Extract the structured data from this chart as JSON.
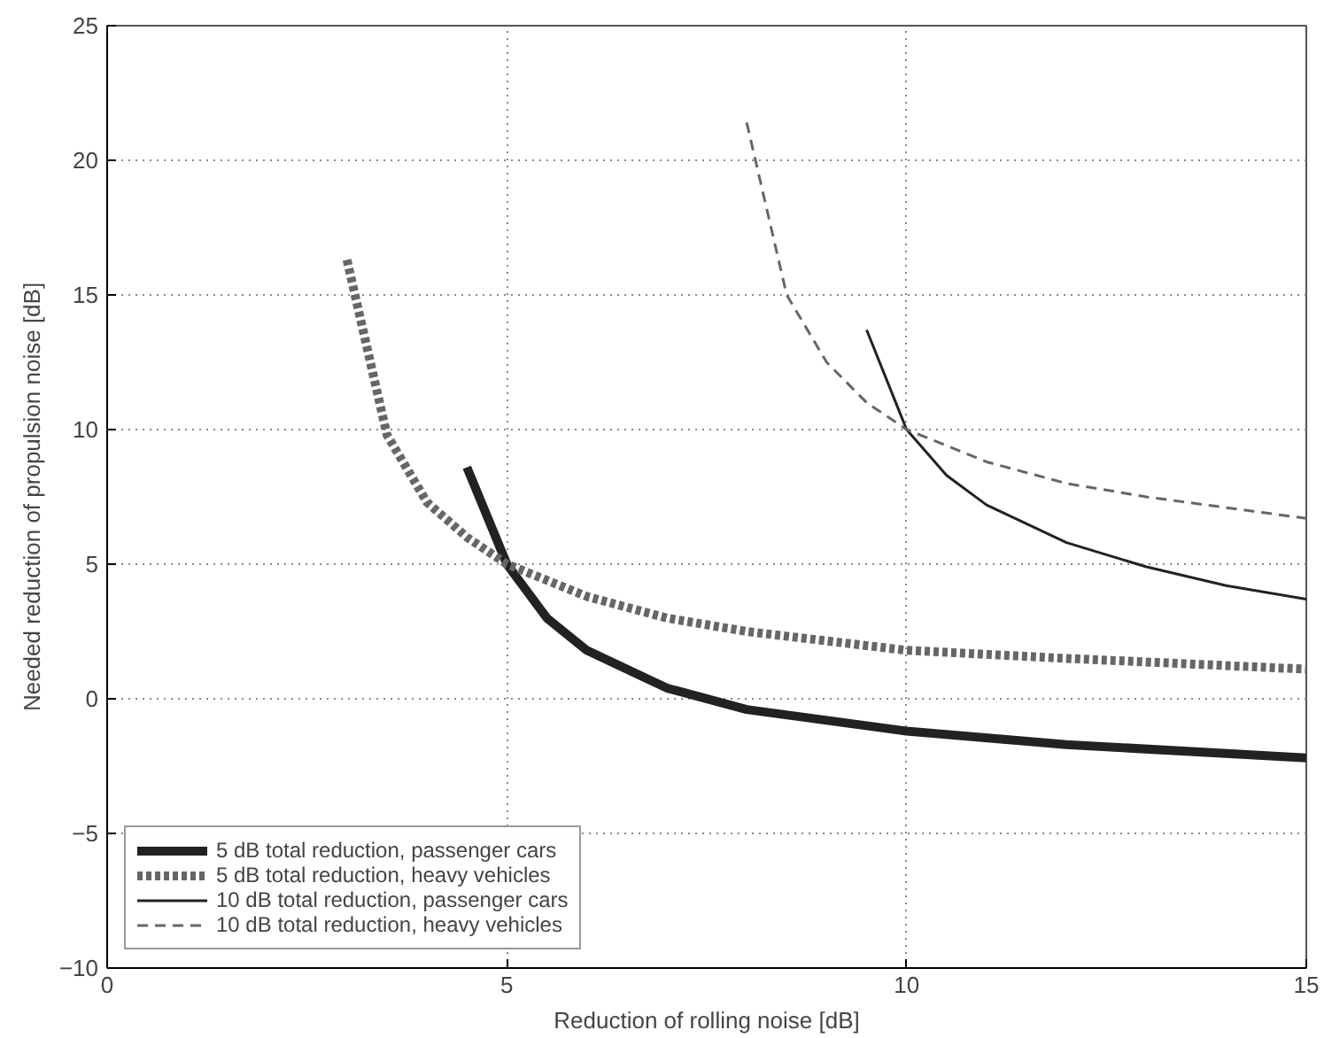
{
  "chart_data": {
    "type": "line",
    "xlabel": "Reduction of rolling noise [dB]",
    "ylabel": "Needed reduction of propulsion noise [dB]",
    "xlim": [
      0,
      15
    ],
    "xticks": [
      0,
      5,
      10,
      15
    ],
    "ylim": [
      -10,
      25
    ],
    "yticks": [
      -10,
      -5,
      0,
      5,
      10,
      15,
      20,
      25
    ],
    "grid": true,
    "legend": "bottom left",
    "series": [
      {
        "name": "5 dB total reduction, passenger cars",
        "color": "#222222",
        "line_style": "solid",
        "x": [
          4.5,
          5,
          5.5,
          6,
          7,
          8,
          10,
          12,
          15
        ],
        "values": [
          8.6,
          5,
          3.0,
          1.8,
          0.4,
          -0.4,
          -1.2,
          -1.7,
          -2.2
        ]
      },
      {
        "name": "5 dB total reduction, heavy vehicles",
        "color": "#666666",
        "line_style": "dotted",
        "x": [
          3.0,
          3.5,
          4,
          4.5,
          5,
          6,
          7,
          8,
          10,
          12,
          15
        ],
        "values": [
          16.3,
          9.8,
          7.3,
          6.0,
          5,
          3.8,
          3.0,
          2.5,
          1.8,
          1.5,
          1.1
        ]
      },
      {
        "name": "10 dB total reduction, passenger cars",
        "color": "#222222",
        "line_style": "solid",
        "x": [
          9.5,
          10,
          10.5,
          11,
          12,
          13,
          14,
          15
        ],
        "values": [
          13.7,
          10,
          8.3,
          7.2,
          5.8,
          4.9,
          4.2,
          3.7
        ]
      },
      {
        "name": "10 dB total reduction, heavy vehicles",
        "color": "#666666",
        "line_style": "dashed",
        "x": [
          8.0,
          8.5,
          9,
          9.5,
          10,
          11,
          12,
          13,
          14,
          15
        ],
        "values": [
          21.4,
          15,
          12.5,
          11.0,
          10,
          8.8,
          8.0,
          7.5,
          7.1,
          6.7
        ]
      }
    ]
  }
}
